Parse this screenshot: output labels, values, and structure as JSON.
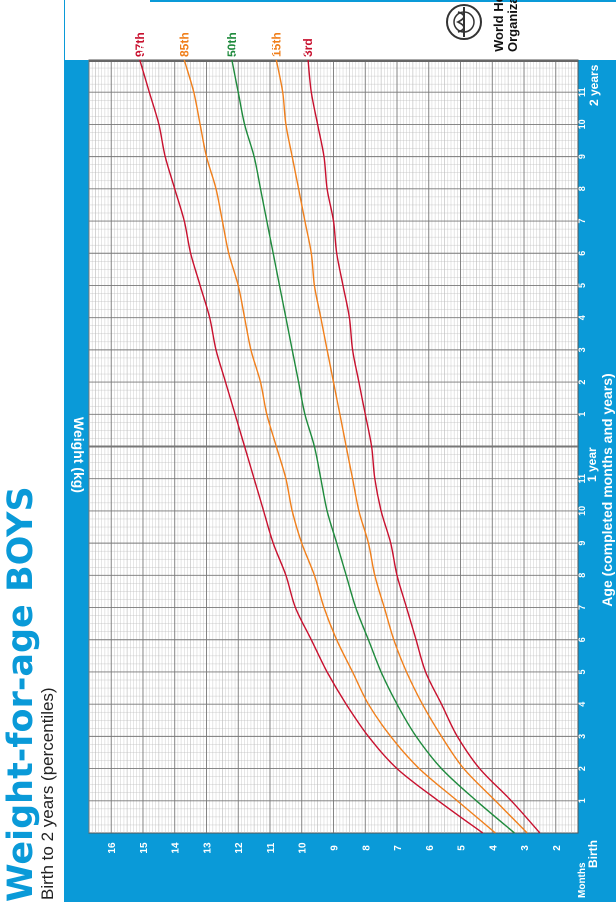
{
  "header": {
    "title": "Weight-for-age BOYS",
    "subtitle": "Birth to 2 years (percentiles)",
    "organization_line1": "World Health",
    "organization_line2": "Organization"
  },
  "colors": {
    "panel": "#0a9ad8",
    "grid_background": "#ffffff",
    "p3": "#c8102e",
    "p15": "#f07f1b",
    "p50": "#1e8a3c",
    "p85": "#f07f1b",
    "p97": "#c8102e"
  },
  "chart_data": {
    "type": "line",
    "title": "Weight-for-age BOYS",
    "subtitle": "Birth to 2 years (percentiles)",
    "xlabel": "Age (completed months and years)",
    "ylabel": "Weight (kg)",
    "months_label": "Months",
    "birth_label": "Birth",
    "year1_label": "1 year",
    "year2_label": "2 years",
    "xlim": [
      0,
      24
    ],
    "ylim": [
      1.3,
      16.7
    ],
    "weight_ticks": [
      "2",
      "3",
      "4",
      "5",
      "6",
      "7",
      "8",
      "9",
      "10",
      "11",
      "12",
      "13",
      "14",
      "15",
      "16"
    ],
    "month_ticks": [
      "1",
      "2",
      "3",
      "4",
      "5",
      "6",
      "7",
      "8",
      "9",
      "10",
      "11",
      "1",
      "2",
      "3",
      "4",
      "5",
      "6",
      "7",
      "8",
      "9",
      "10",
      "11"
    ],
    "grid": true,
    "x": [
      0,
      1,
      2,
      3,
      4,
      5,
      6,
      7,
      8,
      9,
      10,
      11,
      12,
      13,
      14,
      15,
      16,
      17,
      18,
      19,
      20,
      21,
      22,
      23,
      24
    ],
    "series": [
      {
        "name": "3rd",
        "values": [
          2.5,
          3.4,
          4.4,
          5.1,
          5.6,
          6.1,
          6.4,
          6.7,
          7.0,
          7.2,
          7.5,
          7.7,
          7.8,
          8.0,
          8.2,
          8.4,
          8.5,
          8.7,
          8.9,
          9.0,
          9.2,
          9.3,
          9.5,
          9.7,
          9.8
        ]
      },
      {
        "name": "15th",
        "values": [
          2.9,
          3.9,
          4.9,
          5.6,
          6.2,
          6.7,
          7.1,
          7.4,
          7.7,
          7.9,
          8.2,
          8.4,
          8.6,
          8.8,
          9.0,
          9.2,
          9.4,
          9.6,
          9.7,
          9.9,
          10.1,
          10.3,
          10.5,
          10.6,
          10.8
        ]
      },
      {
        "name": "50th",
        "values": [
          3.3,
          4.5,
          5.6,
          6.4,
          7.0,
          7.5,
          7.9,
          8.3,
          8.6,
          8.9,
          9.2,
          9.4,
          9.6,
          9.9,
          10.1,
          10.3,
          10.5,
          10.7,
          10.9,
          11.1,
          11.3,
          11.5,
          11.8,
          12.0,
          12.2
        ]
      },
      {
        "name": "85th",
        "values": [
          3.9,
          5.1,
          6.3,
          7.2,
          7.9,
          8.4,
          8.9,
          9.3,
          9.6,
          10.0,
          10.3,
          10.5,
          10.8,
          11.1,
          11.3,
          11.6,
          11.8,
          12.0,
          12.3,
          12.5,
          12.7,
          13.0,
          13.2,
          13.4,
          13.7
        ]
      },
      {
        "name": "97th",
        "values": [
          4.3,
          5.7,
          7.0,
          7.9,
          8.6,
          9.2,
          9.7,
          10.2,
          10.5,
          10.9,
          11.2,
          11.5,
          11.8,
          12.1,
          12.4,
          12.7,
          12.9,
          13.2,
          13.5,
          13.7,
          14.0,
          14.3,
          14.5,
          14.8,
          15.1
        ]
      }
    ]
  }
}
